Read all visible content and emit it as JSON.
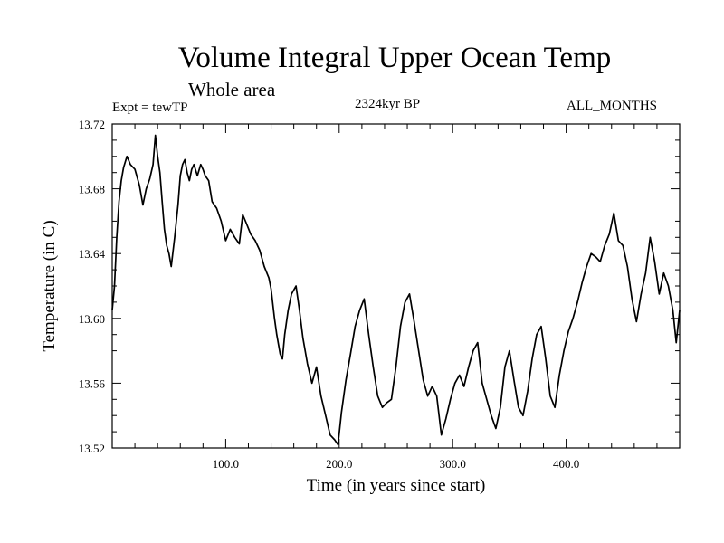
{
  "chart_data": {
    "type": "line",
    "title": "Volume Integral Upper Ocean Temp",
    "subtitle": "Whole area",
    "left_annotation": "Expt = tewTP",
    "center_annotation": "2324kyr BP",
    "right_annotation": "ALL_MONTHS",
    "xlabel": "Time (in years since start)",
    "ylabel": "Temperature (in C)",
    "xlim": [
      0,
      500
    ],
    "ylim": [
      13.52,
      13.72
    ],
    "xticks": [
      100,
      200,
      300,
      400
    ],
    "xtick_labels": [
      "100.0",
      "200.0",
      "300.0",
      "400.0"
    ],
    "yticks": [
      13.52,
      13.56,
      13.6,
      13.64,
      13.68,
      13.72
    ],
    "ytick_labels": [
      "13.52",
      "13.56",
      "13.60",
      "13.64",
      "13.68",
      "13.72"
    ],
    "series": [
      {
        "name": "Volume integral upper ocean temperature",
        "color": "#000000",
        "x": [
          0,
          2,
          4,
          6,
          8,
          10,
          13,
          16,
          20,
          24,
          27,
          30,
          33,
          36,
          38,
          40,
          42,
          44,
          46,
          48,
          50,
          52,
          55,
          58,
          60,
          62,
          64,
          66,
          68,
          70,
          72,
          75,
          78,
          80,
          82,
          85,
          88,
          92,
          96,
          100,
          104,
          108,
          112,
          115,
          118,
          122,
          126,
          130,
          134,
          138,
          140,
          143,
          145,
          148,
          150,
          152,
          155,
          158,
          162,
          165,
          168,
          172,
          176,
          180,
          184,
          188,
          192,
          196,
          199,
          202,
          206,
          210,
          214,
          218,
          222,
          226,
          230,
          234,
          238,
          242,
          246,
          250,
          254,
          258,
          262,
          266,
          270,
          274,
          278,
          282,
          286,
          290,
          294,
          298,
          302,
          306,
          310,
          314,
          318,
          322,
          326,
          330,
          334,
          338,
          342,
          346,
          350,
          354,
          358,
          362,
          366,
          370,
          374,
          378,
          382,
          386,
          390,
          394,
          398,
          402,
          406,
          410,
          414,
          418,
          422,
          426,
          430,
          434,
          438,
          442,
          446,
          450,
          454,
          458,
          462,
          466,
          470,
          474,
          478,
          482,
          486,
          490,
          494,
          497,
          500
        ],
        "y": [
          13.605,
          13.62,
          13.65,
          13.672,
          13.685,
          13.693,
          13.7,
          13.695,
          13.692,
          13.682,
          13.67,
          13.68,
          13.686,
          13.695,
          13.713,
          13.7,
          13.69,
          13.672,
          13.655,
          13.645,
          13.64,
          13.632,
          13.65,
          13.67,
          13.688,
          13.695,
          13.698,
          13.69,
          13.685,
          13.692,
          13.695,
          13.688,
          13.695,
          13.692,
          13.688,
          13.685,
          13.672,
          13.668,
          13.66,
          13.648,
          13.655,
          13.65,
          13.646,
          13.664,
          13.659,
          13.652,
          13.648,
          13.642,
          13.632,
          13.625,
          13.618,
          13.6,
          13.59,
          13.578,
          13.575,
          13.59,
          13.605,
          13.615,
          13.62,
          13.605,
          13.588,
          13.572,
          13.56,
          13.57,
          13.552,
          13.54,
          13.528,
          13.525,
          13.522,
          13.542,
          13.562,
          13.578,
          13.595,
          13.605,
          13.612,
          13.59,
          13.57,
          13.552,
          13.545,
          13.548,
          13.55,
          13.57,
          13.595,
          13.61,
          13.615,
          13.598,
          13.58,
          13.562,
          13.552,
          13.558,
          13.552,
          13.528,
          13.538,
          13.55,
          13.56,
          13.565,
          13.558,
          13.57,
          13.58,
          13.585,
          13.56,
          13.55,
          13.54,
          13.532,
          13.545,
          13.57,
          13.58,
          13.562,
          13.545,
          13.54,
          13.555,
          13.575,
          13.59,
          13.595,
          13.575,
          13.552,
          13.545,
          13.565,
          13.58,
          13.592,
          13.6,
          13.61,
          13.622,
          13.632,
          13.64,
          13.638,
          13.635,
          13.645,
          13.652,
          13.665,
          13.648,
          13.645,
          13.632,
          13.612,
          13.598,
          13.615,
          13.628,
          13.65,
          13.635,
          13.615,
          13.628,
          13.62,
          13.605,
          13.585,
          13.605
        ]
      }
    ]
  }
}
